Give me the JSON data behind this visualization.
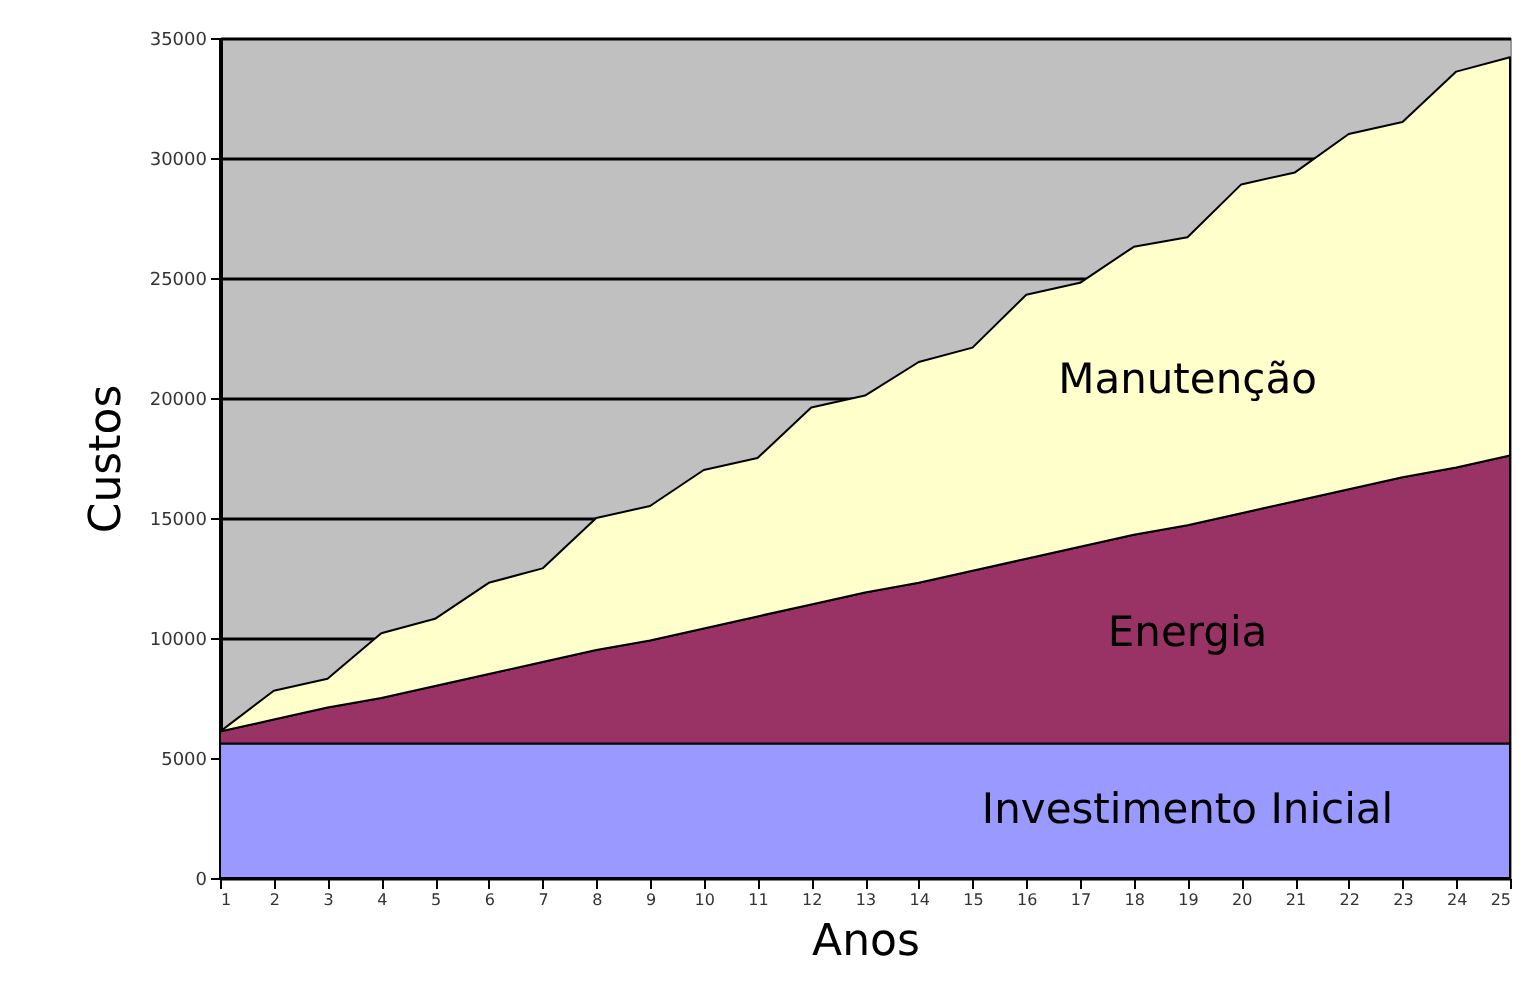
{
  "chart_data": {
    "type": "area",
    "stacked": true,
    "xlabel": "Anos",
    "ylabel": "Custos",
    "x": [
      1,
      2,
      3,
      4,
      5,
      6,
      7,
      8,
      9,
      10,
      11,
      12,
      13,
      14,
      15,
      16,
      17,
      18,
      19,
      20,
      21,
      22,
      23,
      24,
      25
    ],
    "xlim": [
      1,
      25
    ],
    "xticks": [
      1,
      2,
      3,
      4,
      5,
      6,
      7,
      8,
      9,
      10,
      11,
      12,
      13,
      14,
      15,
      16,
      17,
      18,
      19,
      20,
      21,
      22,
      23,
      24,
      25
    ],
    "ylim": [
      0,
      35000
    ],
    "yticks": [
      0,
      5000,
      10000,
      15000,
      20000,
      25000,
      30000,
      35000
    ],
    "grid": "y",
    "series": [
      {
        "name": "Investimento Inicial",
        "color": "#9999ff",
        "values": [
          5600,
          5600,
          5600,
          5600,
          5600,
          5600,
          5600,
          5600,
          5600,
          5600,
          5600,
          5600,
          5600,
          5600,
          5600,
          5600,
          5600,
          5600,
          5600,
          5600,
          5600,
          5600,
          5600,
          5600,
          5600
        ]
      },
      {
        "name": "Energia",
        "color": "#993366",
        "values": [
          500,
          1000,
          1500,
          1900,
          2400,
          2900,
          3400,
          3900,
          4300,
          4800,
          5300,
          5800,
          6300,
          6700,
          7200,
          7700,
          8200,
          8700,
          9100,
          9600,
          10100,
          10600,
          11100,
          11500,
          12000
        ]
      },
      {
        "name": "Manutenção",
        "color": "#ffffcc",
        "values": [
          0,
          1200,
          1200,
          2700,
          2800,
          3800,
          3900,
          5500,
          5600,
          6600,
          6600,
          8200,
          8200,
          9200,
          9300,
          11000,
          11000,
          12000,
          12000,
          13700,
          13700,
          14800,
          14800,
          16500,
          16600
        ]
      }
    ]
  }
}
